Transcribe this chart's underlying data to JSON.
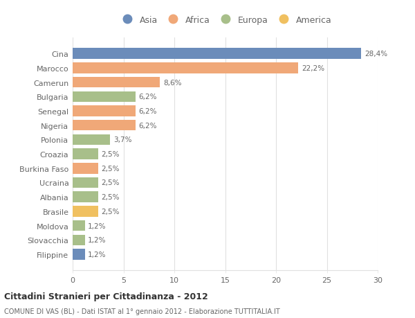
{
  "categories": [
    "Filippine",
    "Slovacchia",
    "Moldova",
    "Brasile",
    "Albania",
    "Ucraina",
    "Burkina Faso",
    "Croazia",
    "Polonia",
    "Nigeria",
    "Senegal",
    "Bulgaria",
    "Camerun",
    "Marocco",
    "Cina"
  ],
  "values": [
    1.2,
    1.2,
    1.2,
    2.5,
    2.5,
    2.5,
    2.5,
    2.5,
    3.7,
    6.2,
    6.2,
    6.2,
    8.6,
    22.2,
    28.4
  ],
  "labels": [
    "1,2%",
    "1,2%",
    "1,2%",
    "2,5%",
    "2,5%",
    "2,5%",
    "2,5%",
    "2,5%",
    "3,7%",
    "6,2%",
    "6,2%",
    "6,2%",
    "8,6%",
    "22,2%",
    "28,4%"
  ],
  "colors": [
    "#6b8cba",
    "#a8bf8a",
    "#a8bf8a",
    "#f0c060",
    "#a8bf8a",
    "#a8bf8a",
    "#f0a878",
    "#a8bf8a",
    "#a8bf8a",
    "#f0a878",
    "#f0a878",
    "#a8bf8a",
    "#f0a878",
    "#f0a878",
    "#6b8cba"
  ],
  "continent_colors": {
    "Asia": "#6b8cba",
    "Africa": "#f0a878",
    "Europa": "#a8bf8a",
    "America": "#f0c060"
  },
  "xlim": [
    0,
    30
  ],
  "xticks": [
    0,
    5,
    10,
    15,
    20,
    25,
    30
  ],
  "title": "Cittadini Stranieri per Cittadinanza - 2012",
  "subtitle": "COMUNE DI VAS (BL) - Dati ISTAT al 1° gennaio 2012 - Elaborazione TUTTITALIA.IT",
  "bg_color": "#ffffff",
  "grid_color": "#e0e0e0",
  "text_color": "#666666"
}
